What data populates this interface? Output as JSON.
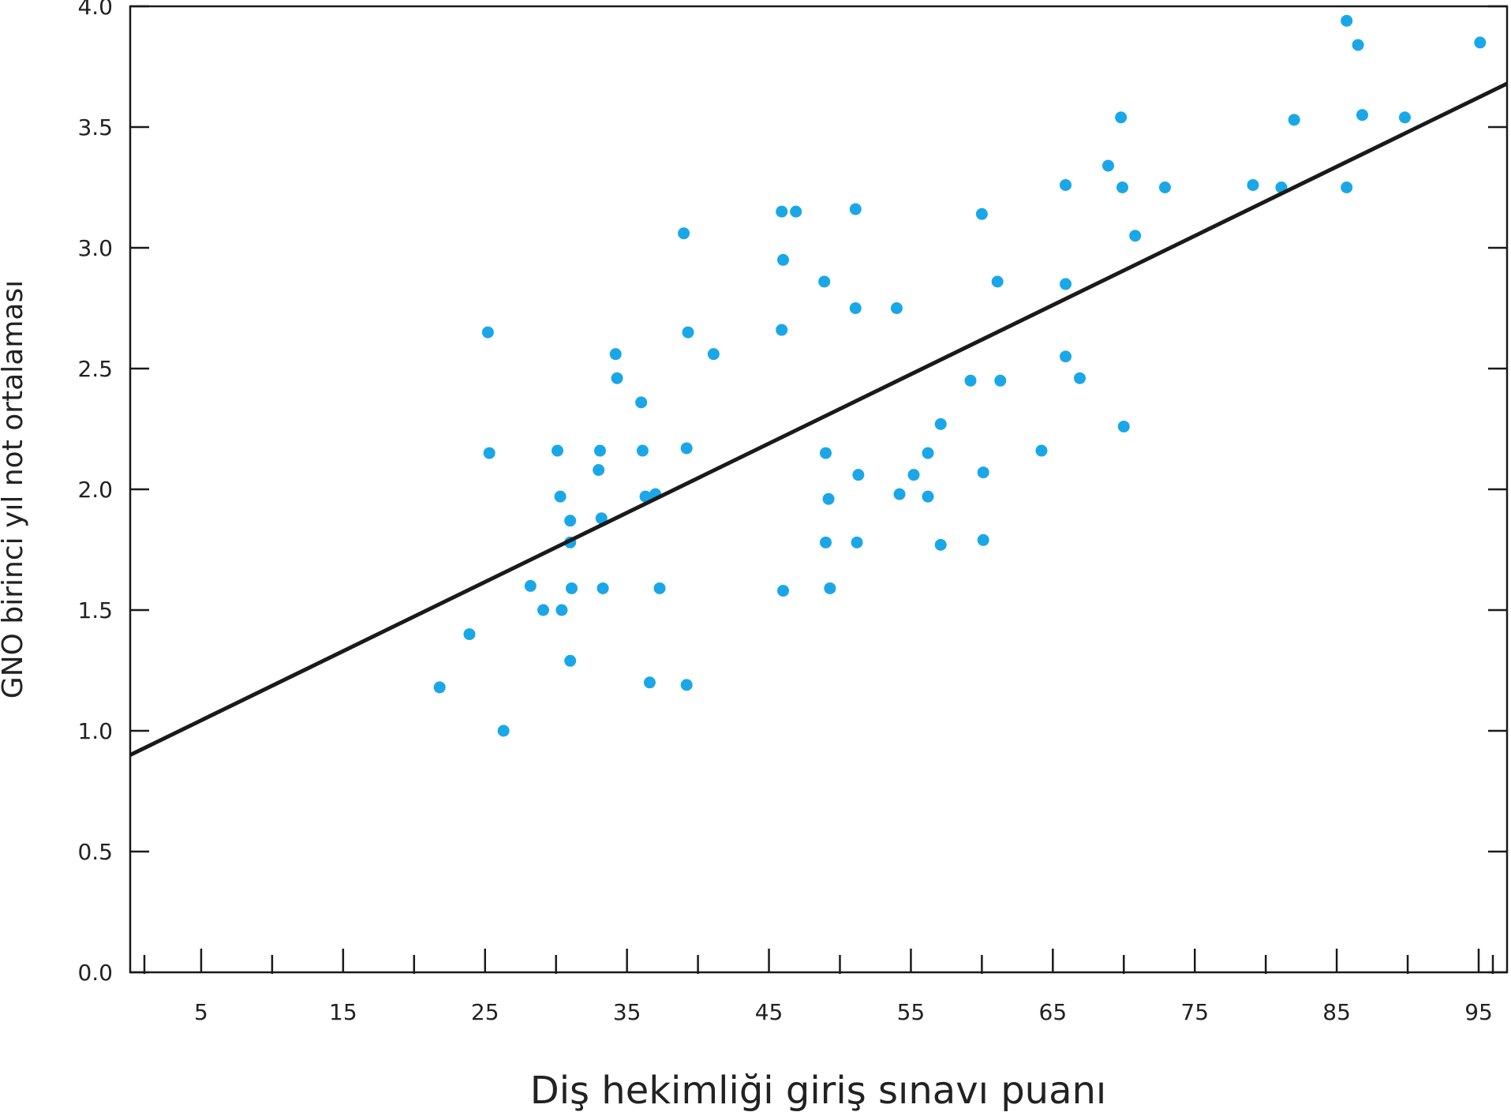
{
  "chart_data": {
    "type": "scatter",
    "title": "",
    "xlabel": "Diş hekimliği giriş sınavı puanı",
    "ylabel": "GNO birinci yıl not ortalaması",
    "xlim": [
      0,
      97
    ],
    "ylim": [
      0,
      4
    ],
    "x_ticks_labeled": [
      "5",
      "15",
      "25",
      "35",
      "45",
      "55",
      "65",
      "75",
      "85",
      "95"
    ],
    "x_ticks_labeled_values": [
      5,
      15,
      25,
      35,
      45,
      55,
      65,
      75,
      85,
      95
    ],
    "x_minor_ticks": [
      1,
      10,
      20,
      30,
      40,
      50,
      60,
      70,
      80,
      90,
      96
    ],
    "y_ticks_labeled": [
      "0.0",
      "0.5",
      "1.0",
      "1.5",
      "2.0",
      "2.5",
      "3.0",
      "3.5",
      "4.0"
    ],
    "y_ticks_labeled_values": [
      0,
      0.5,
      1,
      1.5,
      2,
      2.5,
      3,
      3.5,
      4
    ],
    "grid": false,
    "legend": "none",
    "point_color": "#1aa7e8",
    "line_color": "#1a1a1a",
    "trendline": {
      "x": [
        0,
        97
      ],
      "y": [
        0.9,
        3.68
      ]
    },
    "points": [
      {
        "x": 21.8,
        "y": 1.18
      },
      {
        "x": 23.9,
        "y": 1.4
      },
      {
        "x": 25.2,
        "y": 2.65
      },
      {
        "x": 25.3,
        "y": 2.15
      },
      {
        "x": 26.3,
        "y": 1.0
      },
      {
        "x": 28.2,
        "y": 1.6
      },
      {
        "x": 29.1,
        "y": 1.5
      },
      {
        "x": 30.1,
        "y": 2.16
      },
      {
        "x": 30.3,
        "y": 1.97
      },
      {
        "x": 30.4,
        "y": 1.5
      },
      {
        "x": 31.0,
        "y": 1.87
      },
      {
        "x": 31.0,
        "y": 1.78
      },
      {
        "x": 31.0,
        "y": 1.29
      },
      {
        "x": 31.1,
        "y": 1.59
      },
      {
        "x": 33.0,
        "y": 2.08
      },
      {
        "x": 33.1,
        "y": 2.16
      },
      {
        "x": 33.2,
        "y": 1.88
      },
      {
        "x": 33.3,
        "y": 1.59
      },
      {
        "x": 34.2,
        "y": 2.56
      },
      {
        "x": 34.3,
        "y": 2.46
      },
      {
        "x": 36.0,
        "y": 2.36
      },
      {
        "x": 36.1,
        "y": 2.16
      },
      {
        "x": 36.3,
        "y": 1.97
      },
      {
        "x": 36.6,
        "y": 1.2
      },
      {
        "x": 37.0,
        "y": 1.98
      },
      {
        "x": 37.3,
        "y": 1.59
      },
      {
        "x": 39.0,
        "y": 3.06
      },
      {
        "x": 39.2,
        "y": 2.17
      },
      {
        "x": 39.2,
        "y": 1.19
      },
      {
        "x": 39.3,
        "y": 2.65
      },
      {
        "x": 41.1,
        "y": 2.56
      },
      {
        "x": 45.9,
        "y": 3.15
      },
      {
        "x": 45.9,
        "y": 2.66
      },
      {
        "x": 46.0,
        "y": 2.95
      },
      {
        "x": 46.0,
        "y": 1.58
      },
      {
        "x": 46.9,
        "y": 3.15
      },
      {
        "x": 48.9,
        "y": 2.86
      },
      {
        "x": 49.0,
        "y": 2.15
      },
      {
        "x": 49.0,
        "y": 1.78
      },
      {
        "x": 49.2,
        "y": 1.96
      },
      {
        "x": 49.3,
        "y": 1.59
      },
      {
        "x": 51.1,
        "y": 3.16
      },
      {
        "x": 51.1,
        "y": 2.75
      },
      {
        "x": 51.2,
        "y": 1.78
      },
      {
        "x": 51.3,
        "y": 2.06
      },
      {
        "x": 54.0,
        "y": 2.75
      },
      {
        "x": 54.2,
        "y": 1.98
      },
      {
        "x": 55.2,
        "y": 2.06
      },
      {
        "x": 56.2,
        "y": 2.15
      },
      {
        "x": 56.2,
        "y": 1.97
      },
      {
        "x": 57.1,
        "y": 2.27
      },
      {
        "x": 57.1,
        "y": 1.77
      },
      {
        "x": 59.2,
        "y": 2.45
      },
      {
        "x": 60.0,
        "y": 3.14
      },
      {
        "x": 60.1,
        "y": 2.07
      },
      {
        "x": 60.1,
        "y": 1.79
      },
      {
        "x": 61.1,
        "y": 2.86
      },
      {
        "x": 61.3,
        "y": 2.45
      },
      {
        "x": 64.2,
        "y": 2.16
      },
      {
        "x": 65.9,
        "y": 3.26
      },
      {
        "x": 65.9,
        "y": 2.85
      },
      {
        "x": 65.9,
        "y": 2.55
      },
      {
        "x": 66.9,
        "y": 2.46
      },
      {
        "x": 68.9,
        "y": 3.34
      },
      {
        "x": 69.8,
        "y": 3.54
      },
      {
        "x": 69.9,
        "y": 3.25
      },
      {
        "x": 70.0,
        "y": 2.26
      },
      {
        "x": 70.8,
        "y": 3.05
      },
      {
        "x": 72.9,
        "y": 3.25
      },
      {
        "x": 79.1,
        "y": 3.26
      },
      {
        "x": 81.1,
        "y": 3.25
      },
      {
        "x": 82.0,
        "y": 3.53
      },
      {
        "x": 85.7,
        "y": 3.94
      },
      {
        "x": 85.7,
        "y": 3.25
      },
      {
        "x": 86.5,
        "y": 3.84
      },
      {
        "x": 86.8,
        "y": 3.55
      },
      {
        "x": 89.8,
        "y": 3.54
      },
      {
        "x": 95.1,
        "y": 3.85
      }
    ]
  }
}
